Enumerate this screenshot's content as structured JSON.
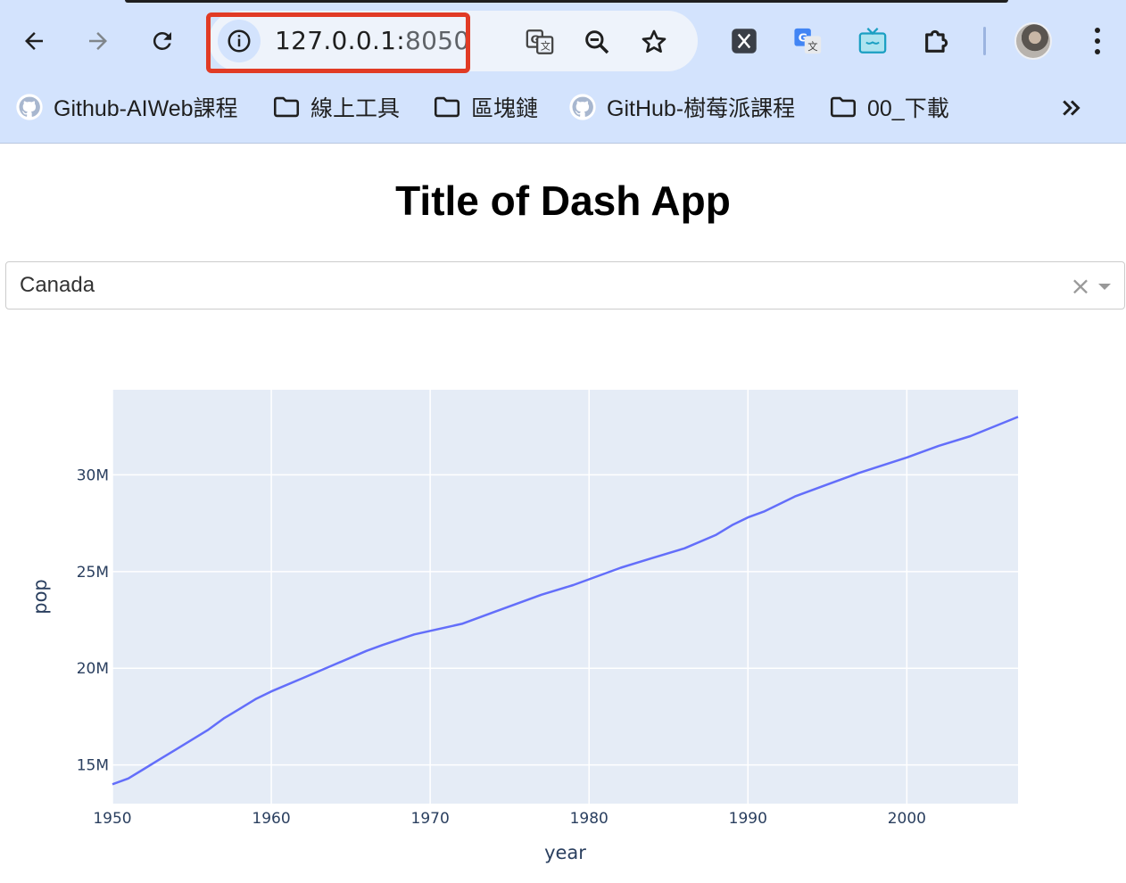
{
  "browser": {
    "url_host": "127.0.0.1:",
    "url_port": "8050",
    "bookmarks": [
      {
        "label": "Github-AIWeb課程",
        "icon": "github-icon"
      },
      {
        "label": "線上工具",
        "icon": "folder-icon"
      },
      {
        "label": "區塊鏈",
        "icon": "folder-icon"
      },
      {
        "label": "GitHub-樹莓派課程",
        "icon": "github-icon"
      },
      {
        "label": "00_下載",
        "icon": "folder-icon"
      }
    ],
    "highlight_color": "#e13b25"
  },
  "page": {
    "title": "Title of Dash App",
    "dropdown": {
      "value": "Canada",
      "clear_symbol": "×"
    }
  },
  "chart_data": {
    "type": "line",
    "xlabel": "year",
    "ylabel": "pop",
    "xlim": [
      1950,
      2007
    ],
    "ylim": [
      13000000,
      34400000
    ],
    "x_ticks": [
      1950,
      1960,
      1970,
      1980,
      1990,
      2000
    ],
    "x_tick_labels": [
      "1950",
      "1960",
      "1970",
      "1980",
      "1990",
      "2000"
    ],
    "y_ticks": [
      15000000,
      20000000,
      25000000,
      30000000
    ],
    "y_tick_labels": [
      "15M",
      "20M",
      "25M",
      "30M"
    ],
    "grid": true,
    "line_color": "#636efa",
    "plot_bg": "#e5ecf6",
    "series": [
      {
        "x": [
          1950,
          1951,
          1952,
          1953,
          1954,
          1955,
          1956,
          1957,
          1958,
          1959,
          1960,
          1962,
          1964,
          1966,
          1967,
          1969,
          1972,
          1974,
          1975,
          1977,
          1979,
          1982,
          1984,
          1986,
          1988,
          1989,
          1990,
          1991,
          1993,
          1995,
          1997,
          2000,
          2002,
          2004,
          2007
        ],
        "y": [
          14000000,
          14300000,
          14800000,
          15300000,
          15800000,
          16300000,
          16800000,
          17400000,
          17900000,
          18400000,
          18800000,
          19500000,
          20200000,
          20900000,
          21200000,
          21750000,
          22300000,
          22900000,
          23200000,
          23800000,
          24300000,
          25200000,
          25700000,
          26200000,
          26900000,
          27400000,
          27800000,
          28100000,
          28900000,
          29500000,
          30100000,
          30900000,
          31500000,
          32000000,
          33000000
        ]
      }
    ]
  }
}
